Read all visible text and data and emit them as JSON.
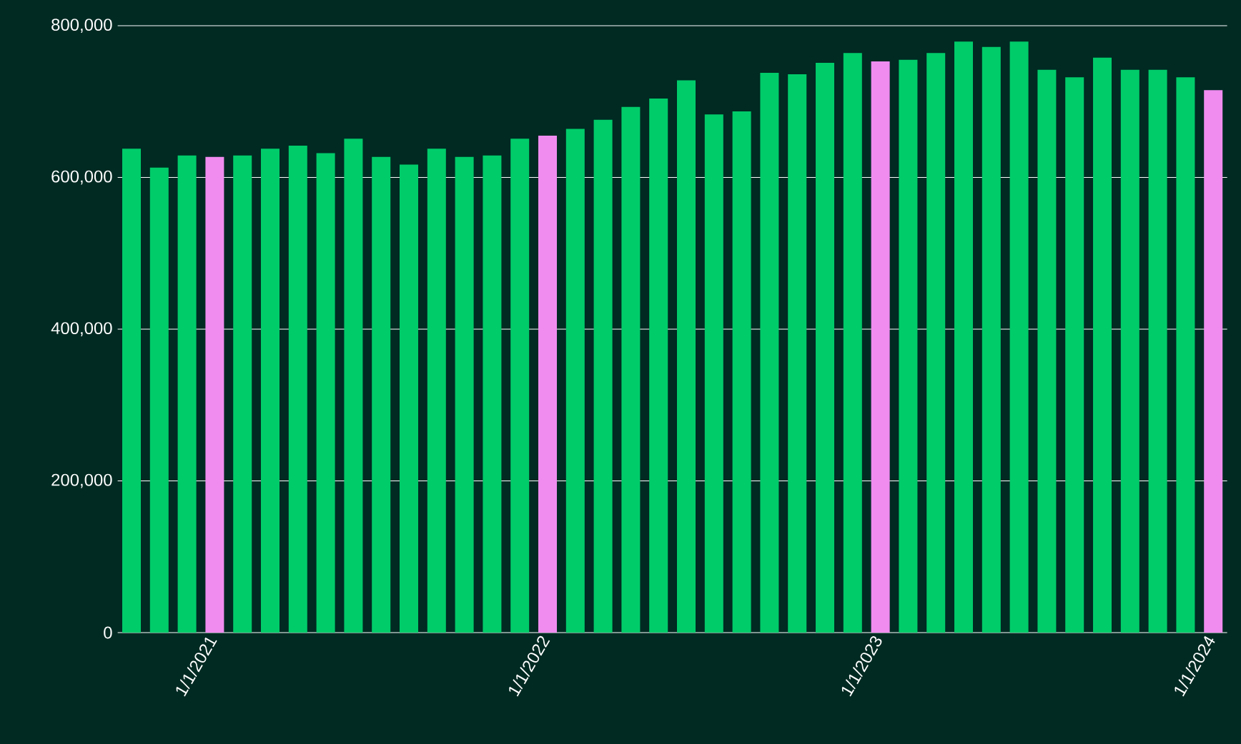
{
  "chart_data": {
    "type": "bar",
    "categories": [
      null,
      null,
      null,
      "1/1/2021",
      null,
      null,
      null,
      null,
      null,
      null,
      null,
      null,
      null,
      null,
      null,
      "1/1/2022",
      null,
      null,
      null,
      null,
      null,
      null,
      null,
      null,
      null,
      null,
      null,
      "1/1/2023",
      null,
      null,
      null,
      null,
      null,
      null,
      null,
      null,
      null,
      null,
      null,
      "1/1/2024"
    ],
    "values": [
      638000,
      613000,
      629000,
      627000,
      629000,
      638000,
      642000,
      632000,
      651000,
      627000,
      617000,
      638000,
      627000,
      629000,
      651000,
      655000,
      664000,
      676000,
      693000,
      704000,
      728000,
      683000,
      687000,
      738000,
      736000,
      751000,
      764000,
      753000,
      755000,
      764000,
      779000,
      772000,
      779000,
      742000,
      732000,
      758000,
      742000,
      742000,
      732000,
      715000
    ],
    "colors": [
      "#00cc6a",
      "#00cc6a",
      "#00cc6a",
      "#f08cf0",
      "#00cc6a",
      "#00cc6a",
      "#00cc6a",
      "#00cc6a",
      "#00cc6a",
      "#00cc6a",
      "#00cc6a",
      "#00cc6a",
      "#00cc6a",
      "#00cc6a",
      "#00cc6a",
      "#f08cf0",
      "#00cc6a",
      "#00cc6a",
      "#00cc6a",
      "#00cc6a",
      "#00cc6a",
      "#00cc6a",
      "#00cc6a",
      "#00cc6a",
      "#00cc6a",
      "#00cc6a",
      "#00cc6a",
      "#f08cf0",
      "#00cc6a",
      "#00cc6a",
      "#00cc6a",
      "#00cc6a",
      "#00cc6a",
      "#00cc6a",
      "#00cc6a",
      "#00cc6a",
      "#00cc6a",
      "#00cc6a",
      "#00cc6a",
      "#f08cf0"
    ],
    "ylim": [
      0,
      800000
    ],
    "yticks": [
      {
        "value": 0,
        "label": "0"
      },
      {
        "value": 200000,
        "label": "200,000"
      },
      {
        "value": 400000,
        "label": "400,000"
      },
      {
        "value": 600000,
        "label": "600,000"
      },
      {
        "value": 800000,
        "label": "800,000"
      }
    ],
    "grid": "y"
  }
}
